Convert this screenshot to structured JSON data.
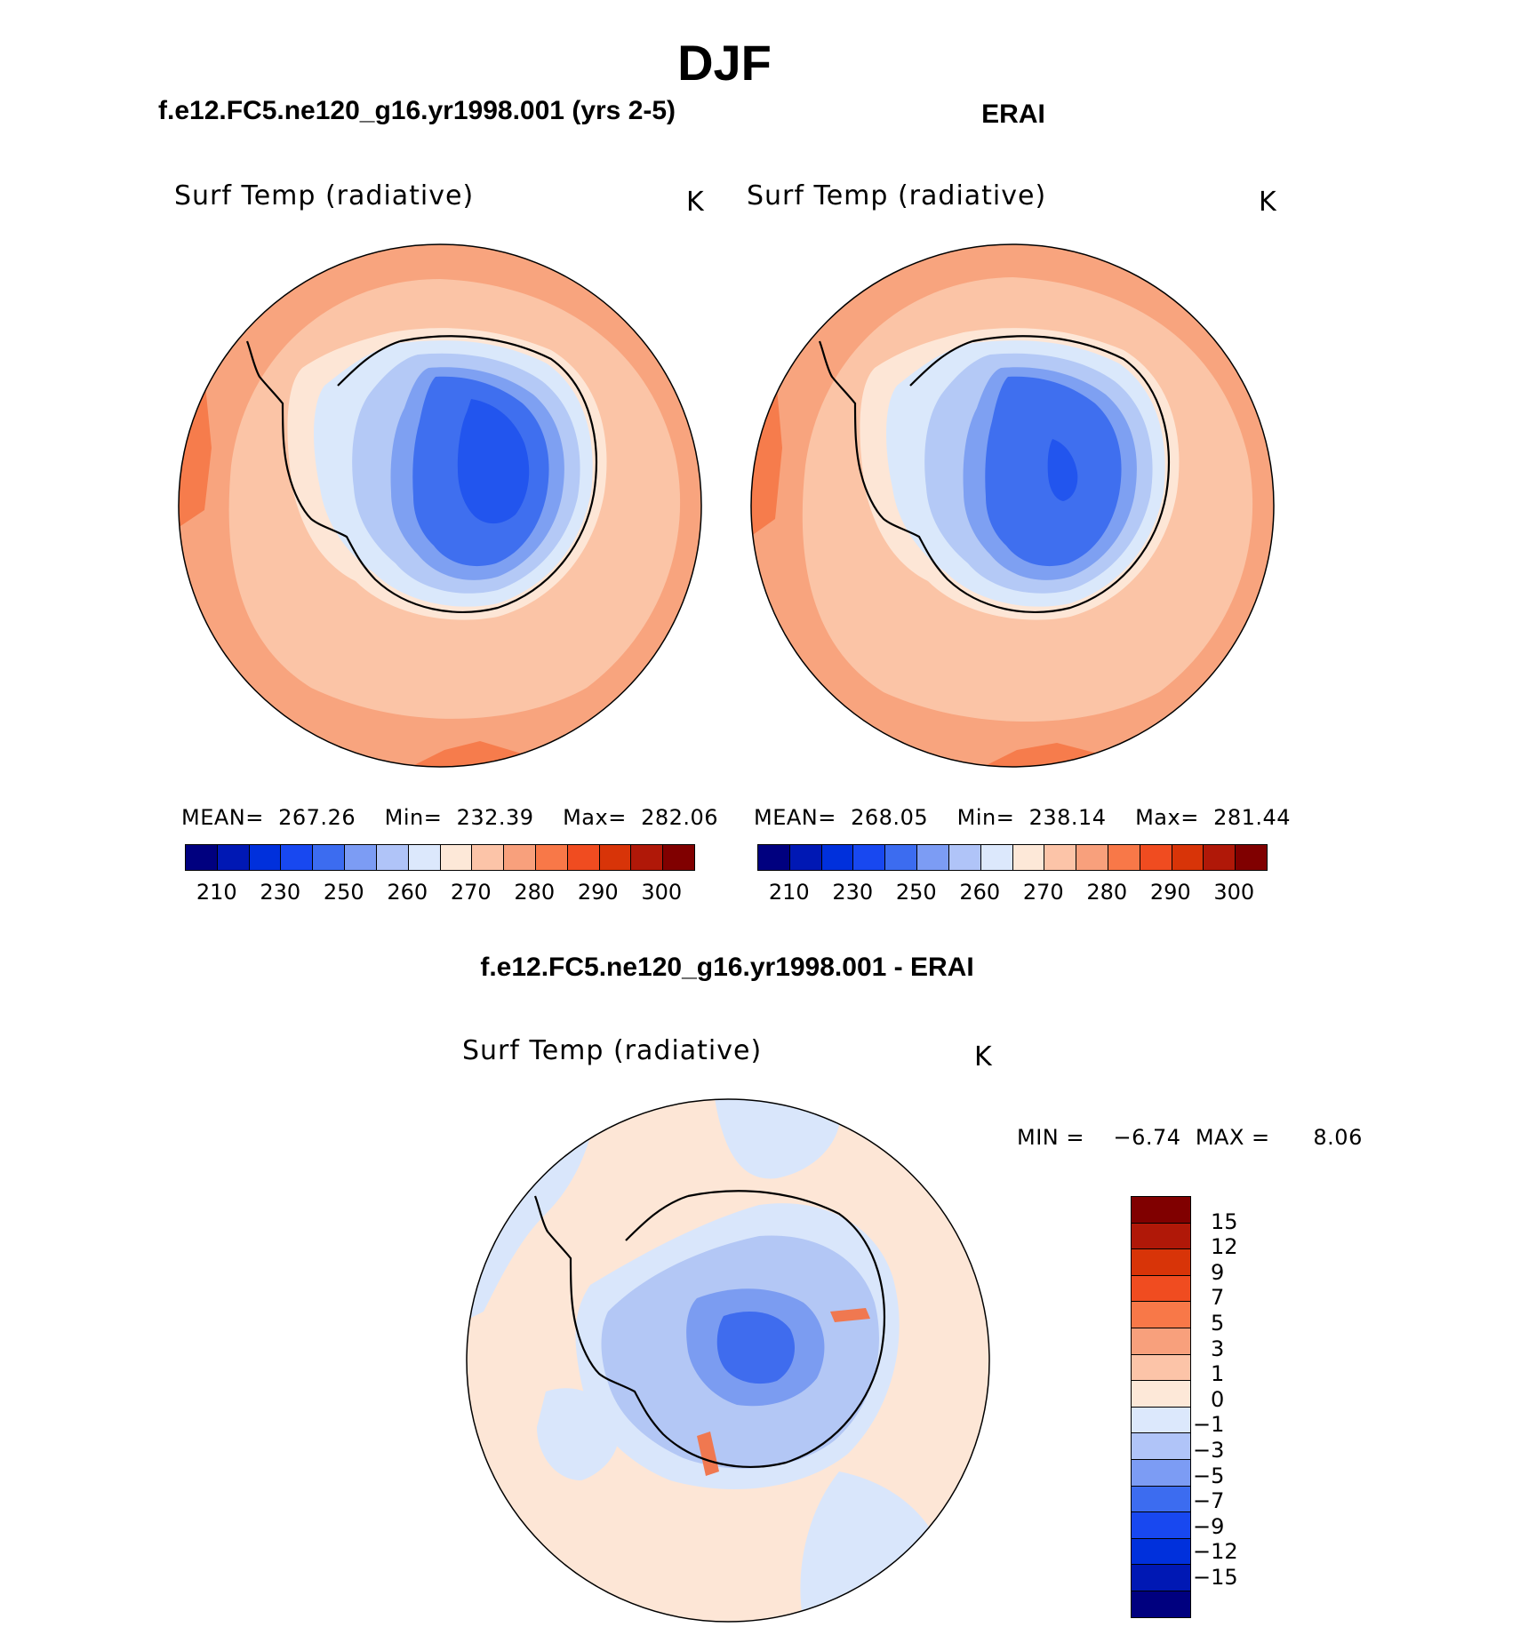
{
  "title": "DJF",
  "panels": [
    {
      "heading": "f.e12.FC5.ne120_g16.yr1998.001 (yrs 2-5)",
      "variable": "Surf Temp (radiative)",
      "units": "K",
      "mean_label": "MEAN=",
      "mean": "267.26",
      "min_label": "Min=",
      "min": "232.39",
      "max_label": "Max=",
      "max": "282.06"
    },
    {
      "heading": "ERAI",
      "variable": "Surf Temp (radiative)",
      "units": "K",
      "mean_label": "MEAN=",
      "mean": "268.05",
      "min_label": "Min=",
      "min": "238.14",
      "max_label": "Max=",
      "max": "281.44"
    }
  ],
  "abs_colorbar": {
    "colors": [
      "#00007f",
      "#0018b4",
      "#0030dc",
      "#1848f0",
      "#3c6cf0",
      "#7c9cf4",
      "#b0c4f8",
      "#dce8fc",
      "#fde8d8",
      "#fcc4a8",
      "#f8a07c",
      "#f87848",
      "#f04c20",
      "#d83408",
      "#b01808",
      "#800000"
    ],
    "ticks": [
      "210",
      "230",
      "250",
      "260",
      "270",
      "280",
      "290",
      "300"
    ]
  },
  "diff_panel": {
    "heading": "f.e12.FC5.ne120_g16.yr1998.001 - ERAI",
    "variable": "Surf Temp (radiative)",
    "units": "K",
    "min_label": "MIN =",
    "min": "−6.74",
    "max_label": "MAX =",
    "max": "8.06"
  },
  "diff_colorbar": {
    "colors": [
      "#800000",
      "#b01808",
      "#d83408",
      "#f04c20",
      "#f87848",
      "#f8a07c",
      "#fcc4a8",
      "#fde8d8",
      "#dce8fc",
      "#b0c4f8",
      "#7c9cf4",
      "#3c6cf0",
      "#1848f0",
      "#0030dc",
      "#0018b4",
      "#00007f"
    ],
    "ticks": [
      "15",
      "12",
      "9",
      "7",
      "5",
      "3",
      "1",
      "0",
      "−1",
      "−3",
      "−5",
      "−7",
      "−9",
      "−12",
      "−15"
    ]
  },
  "map_colors": {
    "ocean_warm": "#fbc4a6",
    "ocean_warmer": "#f8a47e",
    "ocean_edge": "#f67c4c",
    "coast_light": "#fde6d6",
    "ice_pale": "#dae8fb",
    "ice_light": "#b4c9f6",
    "ice_mid": "#7ea0f2",
    "ice_core": "#3f6fef",
    "ice_deep": "#2255ee",
    "diff_pos": "#fde6d6",
    "diff_neg": "#d9e6fb",
    "diff_neg2": "#b3c7f5",
    "diff_neg3": "#7b9cf1",
    "diff_neg4": "#3f6cee",
    "diff_hot": "#f07850"
  }
}
